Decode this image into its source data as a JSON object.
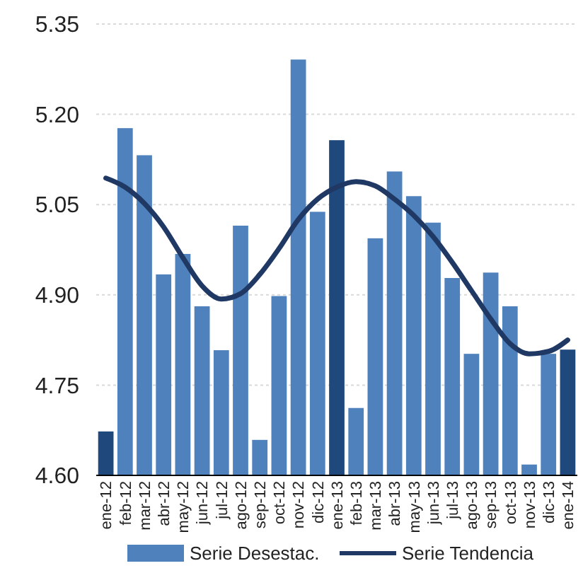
{
  "chart_data": {
    "type": "bar",
    "categories": [
      "ene-12",
      "feb-12",
      "mar-12",
      "abr-12",
      "may-12",
      "jun-12",
      "jul-12",
      "ago-12",
      "sep-12",
      "oct-12",
      "nov-12",
      "dic-12",
      "ene-13",
      "feb-13",
      "mar-13",
      "abr-13",
      "may-13",
      "jun-13",
      "jul-13",
      "ago-13",
      "sep-13",
      "oct-13",
      "nov-13",
      "dic-13",
      "ene-14"
    ],
    "series": [
      {
        "name": "Serie Desestac.",
        "color": "#4f81bd",
        "colors": [
          "#1f497d",
          "#4f81bd",
          "#4f81bd",
          "#4f81bd",
          "#4f81bd",
          "#4f81bd",
          "#4f81bd",
          "#4f81bd",
          "#4f81bd",
          "#4f81bd",
          "#4f81bd",
          "#4f81bd",
          "#1f497d",
          "#4f81bd",
          "#4f81bd",
          "#4f81bd",
          "#4f81bd",
          "#4f81bd",
          "#4f81bd",
          "#4f81bd",
          "#4f81bd",
          "#4f81bd",
          "#4f81bd",
          "#4f81bd",
          "#1f497d"
        ],
        "values": [
          4.673,
          5.177,
          5.132,
          4.934,
          4.968,
          4.881,
          4.808,
          5.015,
          4.659,
          4.898,
          5.291,
          5.038,
          5.157,
          4.712,
          4.994,
          5.105,
          5.064,
          5.02,
          4.928,
          4.802,
          4.937,
          4.881,
          4.618,
          4.802,
          4.809
        ]
      },
      {
        "name": "Serie Tendencia",
        "type": "line",
        "color": "#1f3864",
        "values": [
          5.094,
          5.079,
          5.052,
          5.013,
          4.962,
          4.915,
          4.893,
          4.902,
          4.934,
          4.977,
          5.025,
          5.059,
          5.079,
          5.088,
          5.081,
          5.059,
          5.032,
          4.997,
          4.954,
          4.907,
          4.86,
          4.819,
          4.802,
          4.806,
          4.825
        ]
      }
    ],
    "ylim": [
      4.6,
      5.35
    ],
    "yticks": [
      {
        "value": 4.6,
        "label": "4.60"
      },
      {
        "value": 4.75,
        "label": "4.75"
      },
      {
        "value": 4.9,
        "label": "4.90"
      },
      {
        "value": 5.05,
        "label": "5.05"
      },
      {
        "value": 5.2,
        "label": "5.20"
      },
      {
        "value": 5.35,
        "label": "5.35"
      }
    ],
    "grid": "y",
    "legend": "bottom",
    "marker": "none",
    "line_style": "solid"
  }
}
